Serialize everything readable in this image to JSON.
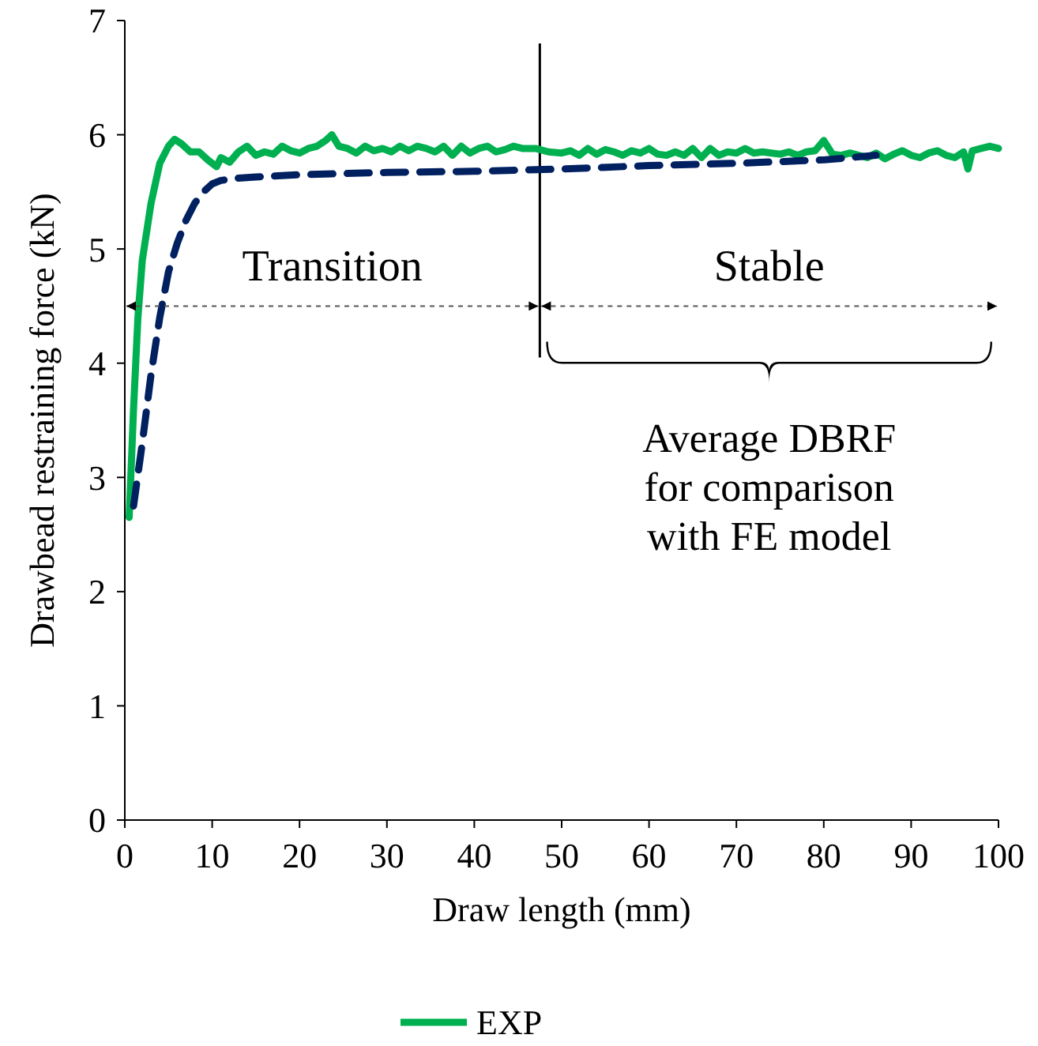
{
  "chart_data": {
    "type": "line",
    "xlabel": "Draw length (mm)",
    "ylabel": "Drawbead restraining force (kN)",
    "xlim": [
      0,
      100
    ],
    "xticks": [
      0,
      10,
      20,
      30,
      40,
      50,
      60,
      70,
      80,
      90,
      100
    ],
    "ylim": [
      0,
      7
    ],
    "yticks": [
      0,
      1,
      2,
      3,
      4,
      5,
      6,
      7
    ],
    "grid": false,
    "legend": "bottom",
    "series": [
      {
        "name": "EXP",
        "color": "#00b050",
        "line_style": "solid",
        "x": [
          0.5,
          1,
          1.5,
          2,
          3,
          4,
          5,
          5.7,
          6.5,
          7.5,
          8.5,
          9.5,
          10.5,
          11,
          12,
          13,
          14,
          15,
          16,
          17,
          18,
          19,
          20,
          21,
          22,
          23,
          23.7,
          24.5,
          25.5,
          26.5,
          27.5,
          28.5,
          29.5,
          30.5,
          31.5,
          32.5,
          33.5,
          34.5,
          35.5,
          36.5,
          37.5,
          38.5,
          39.5,
          40.5,
          41.5,
          42.5,
          43.5,
          44.5,
          45.5,
          47,
          48.5,
          50,
          51,
          52,
          53,
          54,
          55,
          56,
          57,
          58,
          59,
          60,
          61,
          62,
          63,
          64,
          65,
          66,
          67,
          68,
          69,
          70,
          71,
          72,
          73,
          74,
          75,
          76,
          77,
          78,
          79,
          80,
          81,
          82,
          83,
          84,
          85,
          86,
          87,
          88,
          89,
          90,
          91,
          92,
          93,
          94,
          95,
          96,
          96.5,
          97,
          98,
          99,
          100
        ],
        "values": [
          2.65,
          3.6,
          4.4,
          4.9,
          5.4,
          5.75,
          5.9,
          5.96,
          5.92,
          5.85,
          5.85,
          5.78,
          5.72,
          5.8,
          5.76,
          5.85,
          5.9,
          5.82,
          5.85,
          5.83,
          5.9,
          5.86,
          5.84,
          5.88,
          5.9,
          5.95,
          6.0,
          5.9,
          5.88,
          5.84,
          5.9,
          5.86,
          5.88,
          5.85,
          5.9,
          5.86,
          5.9,
          5.88,
          5.85,
          5.9,
          5.82,
          5.9,
          5.84,
          5.88,
          5.9,
          5.85,
          5.87,
          5.9,
          5.88,
          5.88,
          5.85,
          5.84,
          5.86,
          5.82,
          5.88,
          5.83,
          5.87,
          5.85,
          5.82,
          5.86,
          5.84,
          5.88,
          5.83,
          5.82,
          5.85,
          5.82,
          5.88,
          5.8,
          5.88,
          5.82,
          5.85,
          5.84,
          5.88,
          5.84,
          5.85,
          5.84,
          5.83,
          5.85,
          5.82,
          5.85,
          5.86,
          5.95,
          5.83,
          5.82,
          5.84,
          5.82,
          5.8,
          5.84,
          5.79,
          5.83,
          5.86,
          5.82,
          5.8,
          5.84,
          5.86,
          5.82,
          5.8,
          5.85,
          5.7,
          5.86,
          5.88,
          5.9,
          5.88
        ]
      },
      {
        "color": "#002060",
        "line_style": "dashed",
        "x": [
          1,
          2,
          3,
          4,
          5,
          6,
          7,
          8,
          9,
          10,
          11,
          13,
          15,
          20,
          30,
          40,
          50,
          60,
          70,
          80,
          86
        ],
        "values": [
          2.75,
          3.3,
          3.9,
          4.4,
          4.8,
          5.05,
          5.25,
          5.4,
          5.5,
          5.57,
          5.6,
          5.62,
          5.63,
          5.65,
          5.67,
          5.68,
          5.7,
          5.73,
          5.75,
          5.78,
          5.82
        ]
      }
    ],
    "ref_lines": [
      {
        "axis": "x",
        "value": 47.5
      }
    ],
    "annotations": [
      "Transition",
      "Stable",
      "Average DBRF\nfor comparison\nwith FE model"
    ]
  }
}
